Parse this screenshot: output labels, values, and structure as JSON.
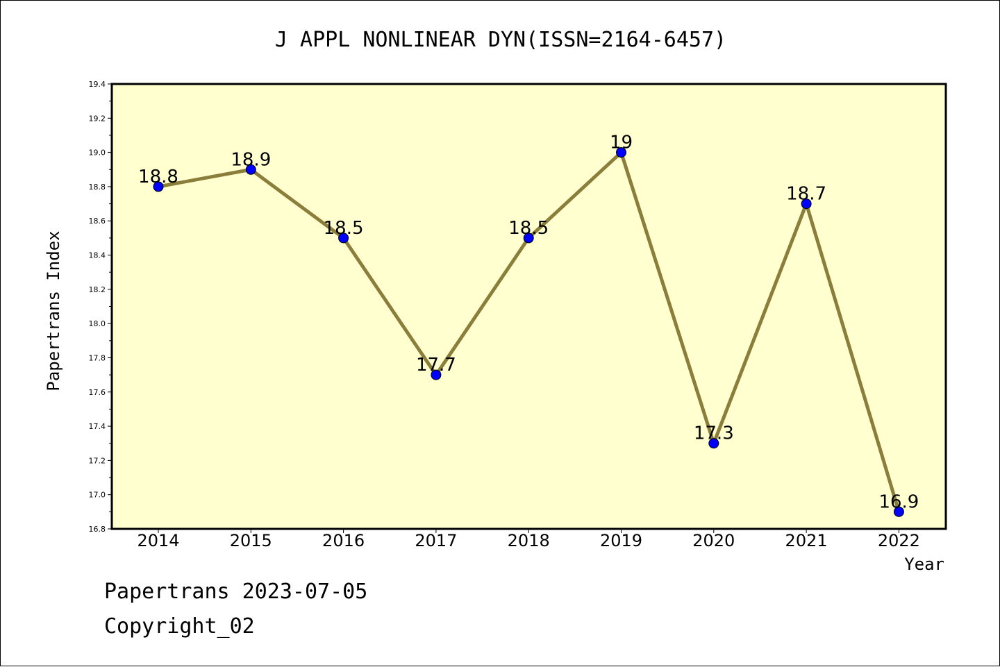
{
  "chart_data": {
    "type": "line",
    "title": "J APPL NONLINEAR DYN(ISSN=2164-6457)",
    "xlabel": "Year",
    "ylabel": "Papertrans Index",
    "x": [
      "2014",
      "2015",
      "2016",
      "2017",
      "2018",
      "2019",
      "2020",
      "2021",
      "2022"
    ],
    "y": [
      18.8,
      18.9,
      18.5,
      17.7,
      18.5,
      19.0,
      17.3,
      18.7,
      16.9
    ],
    "data_labels": [
      "18.8",
      "18.9",
      "18.5",
      "17.7",
      "18.5",
      "19",
      "17.3",
      "18.7",
      "16.9"
    ],
    "ylim": [
      16.8,
      19.4
    ],
    "yticks": [
      "16.8",
      "17.0",
      "17.2",
      "17.4",
      "17.6",
      "17.8",
      "18.0",
      "18.2",
      "18.4",
      "18.6",
      "18.8",
      "19.0",
      "19.2",
      "19.4"
    ],
    "grid": false,
    "colors": {
      "plot_background": "#ffffd0",
      "line": "#8b7d3a",
      "marker": "#0000ff"
    }
  },
  "footer": {
    "date_text": "Papertrans 2023-07-05",
    "copyright_text": "Copyright_02"
  }
}
